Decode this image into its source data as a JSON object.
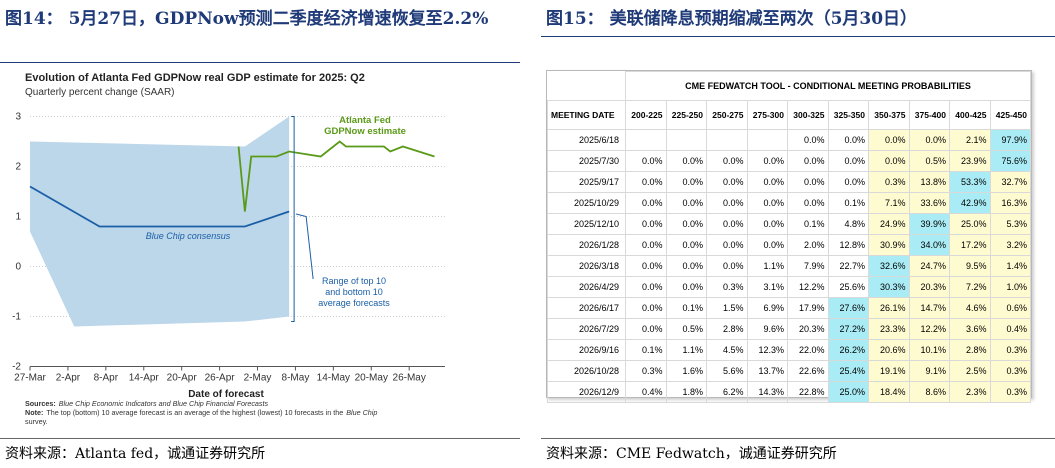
{
  "left": {
    "figure_title": "图14： 5月27日，GDPNow预测二季度经济增速恢复至2.2%",
    "source": "资料来源：Atlanta fed，诚通证券研究所",
    "chart_data": {
      "type": "line",
      "title": "Evolution of Atlanta Fed GDPNow real GDP estimate for 2025: Q2",
      "subtitle": "Quarterly percent change (SAAR)",
      "xlabel": "Date of forecast",
      "x_ticks": [
        "27-Mar",
        "2-Apr",
        "8-Apr",
        "14-Apr",
        "20-Apr",
        "26-Apr",
        "2-May",
        "8-May",
        "14-May",
        "20-May",
        "26-May"
      ],
      "y_ticks": [
        "3",
        "2",
        "1",
        "0",
        "-1",
        "-2"
      ],
      "ylim": [
        -2,
        3
      ],
      "series": [
        {
          "name": "Atlanta Fed GDPNow estimate",
          "color": "#5a9a18",
          "points": [
            [
              "2025-04-29",
              2.4
            ],
            [
              "2025-04-30",
              1.1
            ],
            [
              "2025-05-01",
              2.2
            ],
            [
              "2025-05-05",
              2.2
            ],
            [
              "2025-05-07",
              2.3
            ],
            [
              "2025-05-12",
              2.2
            ],
            [
              "2025-05-15",
              2.5
            ],
            [
              "2025-05-16",
              2.4
            ],
            [
              "2025-05-22",
              2.4
            ],
            [
              "2025-05-23",
              2.3
            ],
            [
              "2025-05-25",
              2.4
            ],
            [
              "2025-05-30",
              2.2
            ]
          ]
        },
        {
          "name": "Blue Chip consensus",
          "color": "#1a5fa6",
          "points": [
            [
              "2025-03-27",
              1.6
            ],
            [
              "2025-04-07",
              0.8
            ],
            [
              "2025-04-30",
              0.8
            ],
            [
              "2025-05-07",
              1.1
            ]
          ]
        }
      ],
      "band": {
        "name": "Range of top 10 and bottom 10 average forecasts",
        "color": "#bcd6ea",
        "upper": [
          [
            "2025-03-27",
            2.5
          ],
          [
            "2025-04-30",
            2.4
          ],
          [
            "2025-05-07",
            3.0
          ]
        ],
        "lower": [
          [
            "2025-03-27",
            0.7
          ],
          [
            "2025-04-03",
            -1.2
          ],
          [
            "2025-04-30",
            -1.1
          ],
          [
            "2025-05-07",
            -1.0
          ]
        ]
      },
      "annotations": {
        "gdpnow": "Atlanta Fed GDPNow estimate",
        "bluechip": "Blue Chip consensus",
        "range": "Range of top 10 and bottom 10 average forecasts"
      },
      "notes": {
        "sources_label": "Sources:",
        "sources_text": "Blue Chip Economic Indicators and Blue Chip Financial Forecasts",
        "note_label": "Note:",
        "note_text1": "The top (bottom) 10 average forecast is an average of the highest (lowest) 10 forecasts in the",
        "note_text_italic": "Blue Chip",
        "note_text2": "survey."
      }
    }
  },
  "right": {
    "figure_title": "图15： 美联储降息预期缩减至两次（5月30日）",
    "source": "资料来源：CME Fedwatch，诚通证券研究所",
    "chart_data": {
      "type": "table",
      "title": "CME FEDWATCH TOOL - CONDITIONAL MEETING PROBABILITIES",
      "columns": [
        "MEETING DATE",
        "200-225",
        "225-250",
        "250-275",
        "275-300",
        "300-325",
        "325-350",
        "350-375",
        "375-400",
        "400-425",
        "425-450"
      ],
      "rows": [
        [
          "2025/6/18",
          "",
          "",
          "",
          "",
          "0.0%",
          "0.0%",
          "0.0%",
          "0.0%",
          "2.1%",
          "97.9%"
        ],
        [
          "2025/7/30",
          "0.0%",
          "0.0%",
          "0.0%",
          "0.0%",
          "0.0%",
          "0.0%",
          "0.0%",
          "0.5%",
          "23.9%",
          "75.6%"
        ],
        [
          "2025/9/17",
          "0.0%",
          "0.0%",
          "0.0%",
          "0.0%",
          "0.0%",
          "0.0%",
          "0.3%",
          "13.8%",
          "53.3%",
          "32.7%"
        ],
        [
          "2025/10/29",
          "0.0%",
          "0.0%",
          "0.0%",
          "0.0%",
          "0.0%",
          "0.1%",
          "7.1%",
          "33.6%",
          "42.9%",
          "16.3%"
        ],
        [
          "2025/12/10",
          "0.0%",
          "0.0%",
          "0.0%",
          "0.0%",
          "0.1%",
          "4.8%",
          "24.9%",
          "39.9%",
          "25.0%",
          "5.3%"
        ],
        [
          "2026/1/28",
          "0.0%",
          "0.0%",
          "0.0%",
          "0.0%",
          "2.0%",
          "12.8%",
          "30.9%",
          "34.0%",
          "17.2%",
          "3.2%"
        ],
        [
          "2026/3/18",
          "0.0%",
          "0.0%",
          "0.0%",
          "1.1%",
          "7.9%",
          "22.7%",
          "32.6%",
          "24.7%",
          "9.5%",
          "1.4%"
        ],
        [
          "2026/4/29",
          "0.0%",
          "0.0%",
          "0.3%",
          "3.1%",
          "12.2%",
          "25.6%",
          "30.3%",
          "20.3%",
          "7.2%",
          "1.0%"
        ],
        [
          "2026/6/17",
          "0.0%",
          "0.1%",
          "1.5%",
          "6.9%",
          "17.9%",
          "27.6%",
          "26.1%",
          "14.7%",
          "4.6%",
          "0.6%"
        ],
        [
          "2026/7/29",
          "0.0%",
          "0.5%",
          "2.8%",
          "9.6%",
          "20.3%",
          "27.2%",
          "23.3%",
          "12.2%",
          "3.6%",
          "0.4%"
        ],
        [
          "2026/9/16",
          "0.1%",
          "1.1%",
          "4.5%",
          "12.3%",
          "22.0%",
          "26.2%",
          "20.6%",
          "10.1%",
          "2.8%",
          "0.3%"
        ],
        [
          "2026/10/28",
          "0.3%",
          "1.6%",
          "5.6%",
          "13.7%",
          "22.6%",
          "25.4%",
          "19.1%",
          "9.1%",
          "2.5%",
          "0.3%"
        ],
        [
          "2026/12/9",
          "0.4%",
          "1.8%",
          "6.2%",
          "14.3%",
          "22.8%",
          "25.0%",
          "18.4%",
          "8.6%",
          "2.3%",
          "0.3%"
        ]
      ],
      "highlight": {
        "blue": [
          [
            0,
            10
          ],
          [
            1,
            10
          ],
          [
            2,
            9
          ],
          [
            3,
            9
          ],
          [
            4,
            8
          ],
          [
            5,
            8
          ],
          [
            6,
            7
          ],
          [
            7,
            7
          ],
          [
            8,
            6
          ],
          [
            9,
            6
          ],
          [
            10,
            6
          ],
          [
            11,
            6
          ],
          [
            12,
            6
          ]
        ],
        "colors": {
          "blue": "#a9ecf5",
          "yellow": "#fffbd0"
        }
      }
    }
  }
}
